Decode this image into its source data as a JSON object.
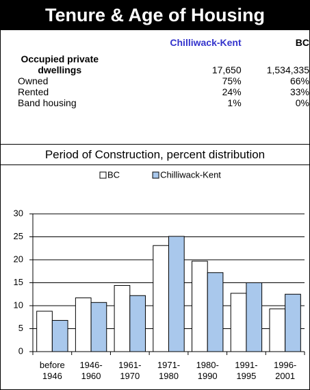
{
  "header": {
    "title": "Tenure & Age of Housing"
  },
  "table": {
    "columns": [
      "Chilliwack-Kent",
      "BC"
    ],
    "rows": [
      [
        "Occupied private dwellings",
        "17,650",
        "1,534,335"
      ],
      [
        "Owned",
        "75%",
        "66%"
      ],
      [
        "Rented",
        "24%",
        "33%"
      ],
      [
        "Band housing",
        "1%",
        "0%"
      ]
    ]
  },
  "chart_data": {
    "type": "bar",
    "title": "Period of Construction, percent distribution",
    "categories": [
      "before 1946",
      "1946-1960",
      "1961-1970",
      "1971-1980",
      "1980-1990",
      "1991-1995",
      "1996-2001"
    ],
    "series": [
      {
        "name": "BC",
        "color": "#ffffff",
        "values": [
          8.8,
          11.7,
          14.4,
          23.1,
          19.7,
          12.7,
          9.3
        ]
      },
      {
        "name": "Chilliwack-Kent",
        "color": "#a9c8ec",
        "values": [
          6.8,
          10.7,
          12.2,
          25.1,
          17.2,
          15.0,
          12.5
        ]
      }
    ],
    "ylim": [
      0,
      30
    ],
    "yticks": [
      0,
      5,
      10,
      15,
      20,
      25,
      30
    ],
    "grid": true,
    "legend": "top"
  }
}
